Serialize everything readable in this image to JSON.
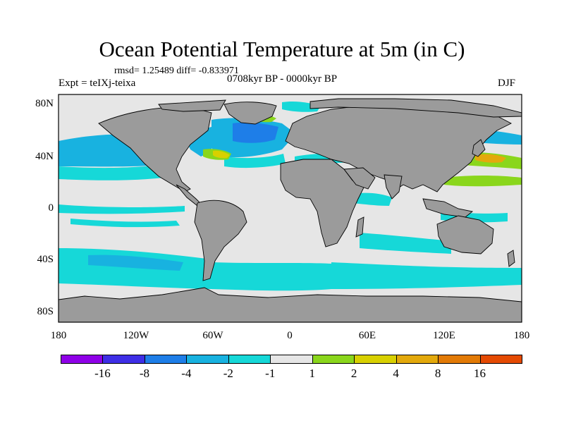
{
  "title": "Ocean Potential Temperature at 5m (in C)",
  "stats_text": "rmsd= 1.25489 diff= -0.833971",
  "experiment_label": "Expt = teIXj-teixa",
  "period_label": "0708kyr BP - 0000kyr BP",
  "season_label": "DJF",
  "y_axis_ticks": [
    "80N",
    "40N",
    "0",
    "40S",
    "80S"
  ],
  "x_axis_ticks": [
    "180",
    "120W",
    "60W",
    "0",
    "60E",
    "120E",
    "180"
  ],
  "colorbar": {
    "colors": [
      "#8f00e8",
      "#3e2ee6",
      "#1e7ee8",
      "#18b2e0",
      "#16d8d8",
      "#e6e6e6",
      "#8ad61c",
      "#d8d000",
      "#e3a90c",
      "#e27a06",
      "#e44a02"
    ],
    "labels": [
      "-16",
      "-8",
      "-4",
      "-2",
      "-1",
      "1",
      "2",
      "4",
      "8",
      "16"
    ]
  },
  "colors": {
    "land": "#9b9b9b",
    "no_change": "#e6e6e6",
    "cool_weak": "#16d8d8",
    "cool_mid": "#18b2e0",
    "cool_strong": "#1e7ee8",
    "warm_weak": "#8ad61c",
    "warm_mid": "#d8d000",
    "warm_strong": "#e3a90c"
  }
}
